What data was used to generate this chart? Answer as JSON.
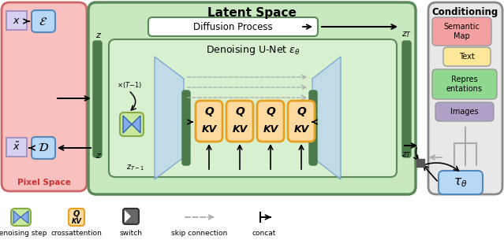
{
  "pixel_space_label": "Pixel Space",
  "latent_space_label": "Latent Space",
  "conditioning_label": "Conditioning",
  "diffusion_process_label": "Diffusion Process",
  "denoising_unet_label": "Denoising U-Net $\\epsilon_\\theta$",
  "conditioning_items": [
    "Semantic\nMap",
    "Text",
    "Repres\nentations",
    "Images"
  ],
  "conditioning_colors": [
    "#f4a0a0",
    "#fde89a",
    "#90d890",
    "#b0a0c8"
  ],
  "legend_items": [
    "denoising step",
    "crossattention",
    "switch",
    "skip connection",
    "concat"
  ],
  "pixel_space_bg": "#f9c0c0",
  "latent_space_bg": "#c8e8c0",
  "conditioning_bg": "#e8e8e8",
  "unet_inner_bg": "#d8f0d0",
  "encoder_color": "#b8d8f8",
  "decoder_color": "#b8d8f8",
  "qkv_color": "#fddba0",
  "qkv_border": "#e8a020",
  "green_bar_color": "#4a7a4a"
}
